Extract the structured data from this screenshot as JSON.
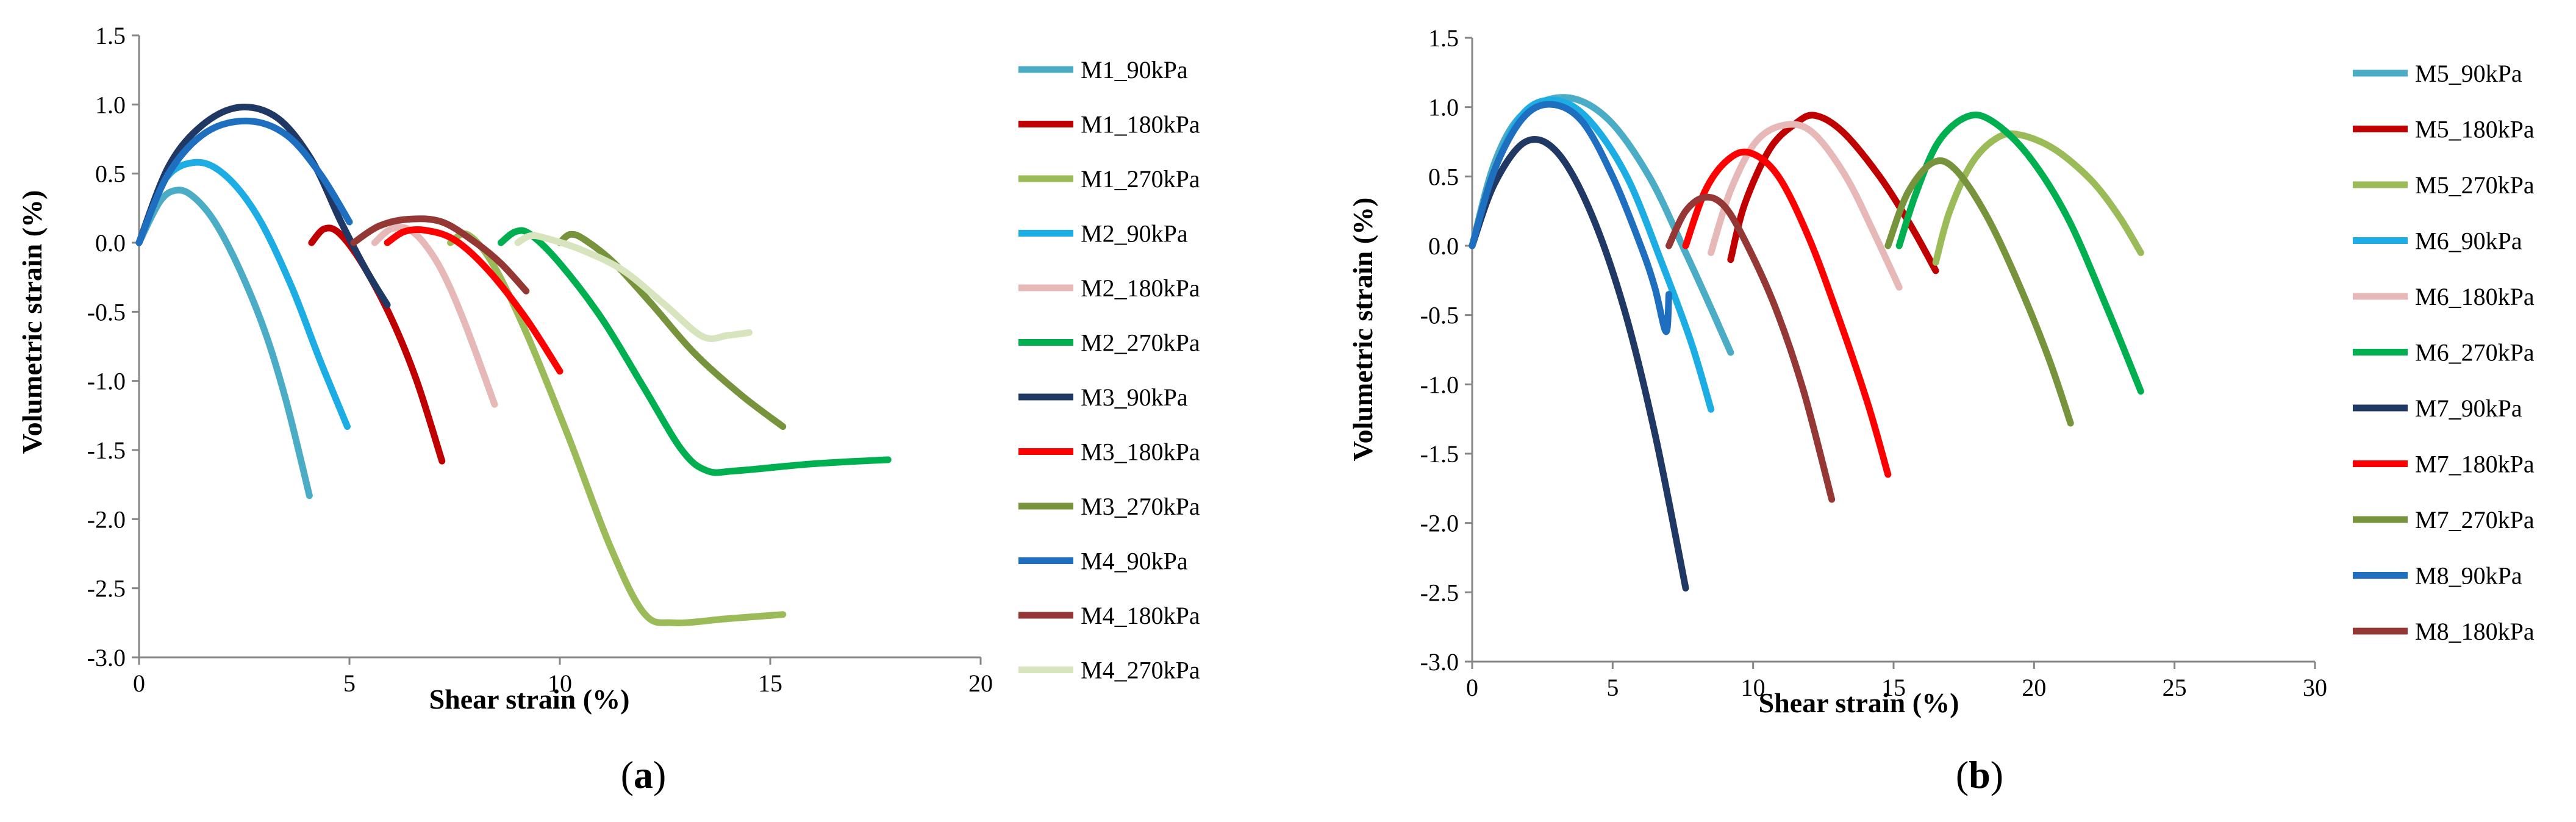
{
  "chart_data": [
    {
      "panel_label": "a",
      "type": "line",
      "xlabel": "Shear strain (%)",
      "ylabel": "Volumetric strain (%)",
      "xlim": [
        0,
        20
      ],
      "ylim": [
        -3.0,
        1.5
      ],
      "xticks": [
        0,
        5,
        10,
        15,
        20
      ],
      "yticks": [
        1.5,
        1.0,
        0.5,
        0.0,
        -0.5,
        -1.0,
        -1.5,
        -2.0,
        -2.5,
        -3.0
      ],
      "xtick_labels": [
        "0",
        "5",
        "10",
        "15",
        "20"
      ],
      "ytick_labels": [
        "1.5",
        "1.0",
        "0.5",
        "0.0",
        "-0.5",
        "-1.0",
        "-1.5",
        "-2.0",
        "-2.5",
        "-3.0"
      ],
      "legend_position": "right",
      "series": [
        {
          "name": "M1_90kPa",
          "color": "#4BACC6",
          "points": [
            [
              0,
              0
            ],
            [
              0.5,
              0.3
            ],
            [
              0.9,
              0.38
            ],
            [
              1.3,
              0.33
            ],
            [
              1.8,
              0.15
            ],
            [
              2.4,
              -0.2
            ],
            [
              3,
              -0.65
            ],
            [
              3.5,
              -1.15
            ],
            [
              4.05,
              -1.83
            ]
          ]
        },
        {
          "name": "M1_180kPa",
          "color": "#C00000",
          "points": [
            [
              4.1,
              0
            ],
            [
              4.4,
              0.1
            ],
            [
              4.75,
              0.07
            ],
            [
              5.3,
              -0.15
            ],
            [
              6,
              -0.55
            ],
            [
              6.6,
              -1
            ],
            [
              7.2,
              -1.58
            ]
          ]
        },
        {
          "name": "M1_270kPa",
          "color": "#9BBB59",
          "points": [
            [
              7.4,
              0
            ],
            [
              7.8,
              0.06
            ],
            [
              8.4,
              -0.15
            ],
            [
              9.2,
              -0.65
            ],
            [
              10.2,
              -1.4
            ],
            [
              11.2,
              -2.2
            ],
            [
              12,
              -2.68
            ],
            [
              12.7,
              -2.75
            ],
            [
              14,
              -2.72
            ],
            [
              15.3,
              -2.69
            ]
          ]
        },
        {
          "name": "M2_90kPa",
          "color": "#1CADE4",
          "points": [
            [
              0,
              0
            ],
            [
              0.6,
              0.45
            ],
            [
              1.3,
              0.58
            ],
            [
              2,
              0.5
            ],
            [
              2.8,
              0.2
            ],
            [
              3.6,
              -0.3
            ],
            [
              4.3,
              -0.85
            ],
            [
              4.95,
              -1.33
            ]
          ]
        },
        {
          "name": "M2_180kPa",
          "color": "#E6B9B8",
          "points": [
            [
              5.6,
              0
            ],
            [
              6,
              0.1
            ],
            [
              6.5,
              0.08
            ],
            [
              7.1,
              -0.15
            ],
            [
              7.7,
              -0.55
            ],
            [
              8.45,
              -1.17
            ]
          ]
        },
        {
          "name": "M2_270kPa",
          "color": "#00B050",
          "points": [
            [
              8.6,
              0
            ],
            [
              8.95,
              0.08
            ],
            [
              9.3,
              0.06
            ],
            [
              10,
              -0.15
            ],
            [
              11,
              -0.55
            ],
            [
              12,
              -1.05
            ],
            [
              12.9,
              -1.5
            ],
            [
              13.5,
              -1.65
            ],
            [
              14.2,
              -1.65
            ],
            [
              16,
              -1.6
            ],
            [
              17.8,
              -1.57
            ]
          ]
        },
        {
          "name": "M3_90kPa",
          "color": "#1F3864",
          "points": [
            [
              0,
              0
            ],
            [
              0.7,
              0.55
            ],
            [
              1.5,
              0.85
            ],
            [
              2.4,
              0.98
            ],
            [
              3.3,
              0.9
            ],
            [
              4.1,
              0.6
            ],
            [
              4.8,
              0.15
            ],
            [
              5.4,
              -0.2
            ],
            [
              5.9,
              -0.45
            ]
          ]
        },
        {
          "name": "M3_180kPa",
          "color": "#FF0000",
          "points": [
            [
              5.9,
              0
            ],
            [
              6.3,
              0.08
            ],
            [
              6.8,
              0.09
            ],
            [
              7.5,
              0.02
            ],
            [
              8.3,
              -0.2
            ],
            [
              9.2,
              -0.55
            ],
            [
              10,
              -0.93
            ]
          ]
        },
        {
          "name": "M3_270kPa",
          "color": "#77933C",
          "points": [
            [
              10,
              0
            ],
            [
              10.25,
              0.06
            ],
            [
              10.6,
              0.02
            ],
            [
              11.3,
              -0.15
            ],
            [
              12.2,
              -0.45
            ],
            [
              13.2,
              -0.8
            ],
            [
              14.3,
              -1.1
            ],
            [
              15.3,
              -1.33
            ]
          ]
        },
        {
          "name": "M4_90kPa",
          "color": "#1F6FC0",
          "points": [
            [
              0,
              0
            ],
            [
              0.7,
              0.5
            ],
            [
              1.6,
              0.8
            ],
            [
              2.6,
              0.88
            ],
            [
              3.5,
              0.78
            ],
            [
              4.3,
              0.5
            ],
            [
              5,
              0.15
            ]
          ]
        },
        {
          "name": "M4_180kPa",
          "color": "#953735",
          "points": [
            [
              5.1,
              0
            ],
            [
              5.7,
              0.12
            ],
            [
              6.4,
              0.17
            ],
            [
              7.2,
              0.15
            ],
            [
              8,
              0
            ],
            [
              8.6,
              -0.15
            ],
            [
              9.2,
              -0.35
            ]
          ]
        },
        {
          "name": "M4_270kPa",
          "color": "#D7E4BD",
          "points": [
            [
              9,
              0
            ],
            [
              9.3,
              0.05
            ],
            [
              9.7,
              0.03
            ],
            [
              10.5,
              -0.05
            ],
            [
              11.5,
              -0.2
            ],
            [
              12.5,
              -0.45
            ],
            [
              13.4,
              -0.68
            ],
            [
              14,
              -0.67
            ],
            [
              14.5,
              -0.65
            ]
          ]
        }
      ]
    },
    {
      "panel_label": "b",
      "type": "line",
      "xlabel": "Shear strain (%)",
      "ylabel": "Volumetric strain (%)",
      "xlim": [
        0,
        30
      ],
      "ylim": [
        -3.0,
        1.5
      ],
      "xticks": [
        0,
        5,
        10,
        15,
        20,
        25,
        30
      ],
      "yticks": [
        1.5,
        1.0,
        0.5,
        0.0,
        -0.5,
        -1.0,
        -1.5,
        -2.0,
        -2.5,
        -3.0
      ],
      "xtick_labels": [
        "0",
        "5",
        "10",
        "15",
        "20",
        "25",
        "30"
      ],
      "ytick_labels": [
        "1.5",
        "1.0",
        "0.5",
        "0.0",
        "-0.5",
        "-1.0",
        "-1.5",
        "-2.0",
        "-2.5",
        "-3.0"
      ],
      "legend_position": "right",
      "series": [
        {
          "name": "M5_90kPa",
          "color": "#4BACC6",
          "points": [
            [
              0,
              0
            ],
            [
              0.8,
              0.6
            ],
            [
              1.8,
              0.95
            ],
            [
              3.3,
              1.07
            ],
            [
              4.8,
              0.92
            ],
            [
              6.3,
              0.5
            ],
            [
              7.6,
              -0.05
            ],
            [
              8.5,
              -0.45
            ],
            [
              9.2,
              -0.77
            ]
          ]
        },
        {
          "name": "M5_180kPa",
          "color": "#C00000",
          "points": [
            [
              9.2,
              -0.1
            ],
            [
              9.7,
              0.3
            ],
            [
              10.6,
              0.7
            ],
            [
              11.5,
              0.88
            ],
            [
              12.2,
              0.94
            ],
            [
              13.2,
              0.82
            ],
            [
              14.5,
              0.5
            ],
            [
              15.6,
              0.15
            ],
            [
              16.5,
              -0.18
            ]
          ]
        },
        {
          "name": "M5_270kPa",
          "color": "#9BBB59",
          "points": [
            [
              16.5,
              -0.12
            ],
            [
              17,
              0.25
            ],
            [
              17.8,
              0.6
            ],
            [
              18.7,
              0.78
            ],
            [
              19.5,
              0.8
            ],
            [
              20.7,
              0.7
            ],
            [
              22,
              0.48
            ],
            [
              23,
              0.22
            ],
            [
              23.8,
              -0.05
            ]
          ]
        },
        {
          "name": "M6_90kPa",
          "color": "#1CADE4",
          "points": [
            [
              0,
              0
            ],
            [
              0.8,
              0.55
            ],
            [
              1.8,
              0.95
            ],
            [
              2.9,
              1.05
            ],
            [
              4.1,
              0.92
            ],
            [
              5.5,
              0.5
            ],
            [
              6.8,
              -0.15
            ],
            [
              7.8,
              -0.7
            ],
            [
              8.5,
              -1.18
            ]
          ]
        },
        {
          "name": "M6_180kPa",
          "color": "#E6B9B8",
          "points": [
            [
              8.5,
              -0.05
            ],
            [
              9.2,
              0.4
            ],
            [
              10.1,
              0.75
            ],
            [
              11.1,
              0.87
            ],
            [
              12.1,
              0.82
            ],
            [
              13.3,
              0.5
            ],
            [
              14.4,
              0.05
            ],
            [
              15.2,
              -0.3
            ]
          ]
        },
        {
          "name": "M6_270kPa",
          "color": "#00B050",
          "points": [
            [
              15.2,
              0
            ],
            [
              15.8,
              0.38
            ],
            [
              16.6,
              0.75
            ],
            [
              17.6,
              0.93
            ],
            [
              18.5,
              0.9
            ],
            [
              19.8,
              0.65
            ],
            [
              21.2,
              0.2
            ],
            [
              22.6,
              -0.45
            ],
            [
              23.8,
              -1.05
            ]
          ]
        },
        {
          "name": "M7_90kPa",
          "color": "#1F3864",
          "points": [
            [
              0,
              0
            ],
            [
              0.8,
              0.45
            ],
            [
              1.9,
              0.75
            ],
            [
              3,
              0.68
            ],
            [
              4.2,
              0.25
            ],
            [
              5.4,
              -0.45
            ],
            [
              6.5,
              -1.35
            ],
            [
              7.6,
              -2.47
            ]
          ]
        },
        {
          "name": "M7_180kPa",
          "color": "#FF0000",
          "points": [
            [
              7.6,
              0
            ],
            [
              8.3,
              0.4
            ],
            [
              9.1,
              0.62
            ],
            [
              9.9,
              0.67
            ],
            [
              10.9,
              0.5
            ],
            [
              12,
              0.05
            ],
            [
              13.1,
              -0.55
            ],
            [
              14.1,
              -1.15
            ],
            [
              14.8,
              -1.65
            ]
          ]
        },
        {
          "name": "M7_270kPa",
          "color": "#77933C",
          "points": [
            [
              14.8,
              0
            ],
            [
              15.5,
              0.38
            ],
            [
              16.4,
              0.6
            ],
            [
              17.2,
              0.55
            ],
            [
              18.3,
              0.22
            ],
            [
              19.4,
              -0.25
            ],
            [
              20.5,
              -0.8
            ],
            [
              21.3,
              -1.28
            ]
          ]
        },
        {
          "name": "M8_90kPa",
          "color": "#1F6FC0",
          "points": [
            [
              0,
              0
            ],
            [
              0.8,
              0.55
            ],
            [
              1.8,
              0.92
            ],
            [
              2.8,
              1.02
            ],
            [
              3.9,
              0.9
            ],
            [
              5,
              0.5
            ],
            [
              6,
              0
            ],
            [
              6.5,
              -0.3
            ],
            [
              6.9,
              -0.62
            ],
            [
              7,
              -0.35
            ]
          ]
        },
        {
          "name": "M8_180kPa",
          "color": "#953735",
          "points": [
            [
              7,
              0
            ],
            [
              7.6,
              0.25
            ],
            [
              8.3,
              0.35
            ],
            [
              9,
              0.28
            ],
            [
              9.8,
              0
            ],
            [
              10.8,
              -0.45
            ],
            [
              11.8,
              -1.05
            ],
            [
              12.8,
              -1.83
            ]
          ]
        }
      ]
    }
  ]
}
